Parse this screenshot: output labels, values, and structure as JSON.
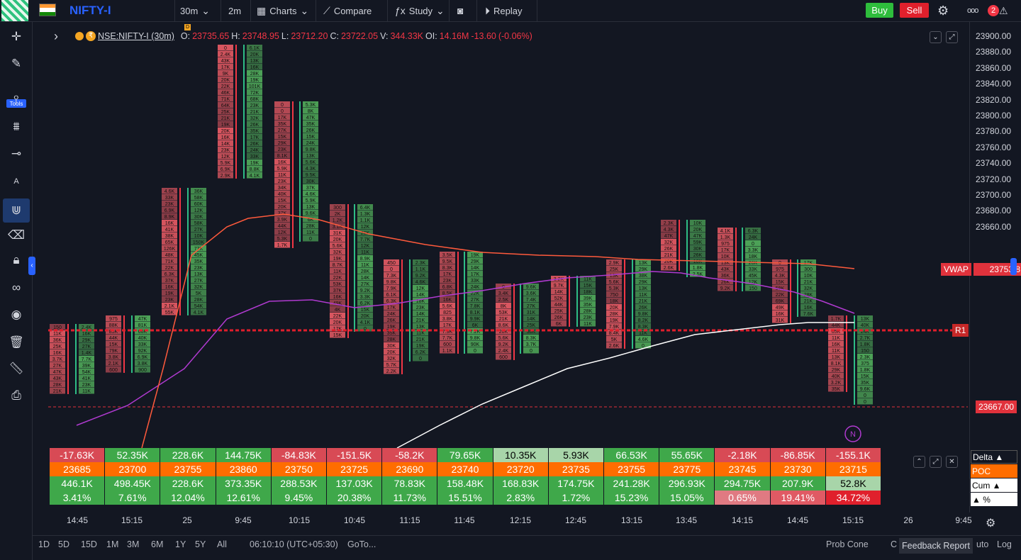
{
  "header": {
    "symbol": "NIFTY-I",
    "interval": "30m",
    "interval2": "2m",
    "charts_label": "Charts",
    "compare_label": "Compare",
    "study_label": "Study",
    "replay_label": "Replay",
    "buy_label": "Buy",
    "sell_label": "Sell",
    "notification_count": "2",
    "more_label": "ooo"
  },
  "left_toolbar": {
    "tools_label": "Tools"
  },
  "legend": {
    "symbol": "NSE:NIFTY-I (30m)",
    "open_label": "O:",
    "open": "23735.65",
    "high_label": "H:",
    "high": "23748.95",
    "low_label": "L:",
    "low": "23712.20",
    "close_label": "C:",
    "close": "23722.05",
    "volume_label": "V:",
    "volume": "344.33K",
    "oi_label": "OI:",
    "oi": "14.16M",
    "change": "-13.60",
    "change_pct": "(-0.06%)",
    "badge": "D"
  },
  "y_axis": {
    "ticks": [
      "23900.00",
      "23880.00",
      "23860.00",
      "23840.00",
      "23820.00",
      "23800.00",
      "23780.00",
      "23760.00",
      "23740.00",
      "23720.00",
      "23700.00",
      "23680.00",
      "23660.00"
    ],
    "vwap_label": "VWAP",
    "vwap_value": "23753.8",
    "r1_label": "R1",
    "last_price": "23667.00",
    "colors": {
      "vwap": "#ff5252",
      "r1": "#d32f2f",
      "last": "#f23645"
    }
  },
  "x_axis": {
    "ticks": [
      "14:45",
      "15:15",
      "25",
      "9:45",
      "10:15",
      "10:45",
      "11:15",
      "11:45",
      "12:15",
      "12:45",
      "13:15",
      "13:45",
      "14:15",
      "14:45",
      "15:15",
      "26",
      "9:45"
    ]
  },
  "footprint": {
    "candles": [
      {
        "dir": "down",
        "rows": [
          "150",
          "11K",
          "36K",
          "25K",
          "16K",
          "3.7K",
          "27K",
          "47K",
          "43K",
          "28K",
          "21K"
        ]
      },
      {
        "dir": "up",
        "rows": [
          "2.4K",
          "16K",
          "29K",
          "27K",
          "1.4K",
          "7.7K",
          "39K",
          "54K",
          "41K",
          "23K",
          "11K"
        ]
      },
      {
        "dir": "down",
        "rows": [
          "975",
          "88K",
          "85K",
          "44K",
          "15K",
          "79K",
          "3.8K",
          "2.1K",
          "600"
        ]
      },
      {
        "dir": "up",
        "rows": [
          "47K",
          "81K",
          "66K",
          "40K",
          "33K",
          "92K",
          "6.9K",
          "3.8K",
          "900"
        ]
      },
      {
        "dir": "down",
        "rows": [
          "4.6K",
          "33K",
          "23K",
          "6.9K",
          "8.9K",
          "16K",
          "41K",
          "38K",
          "65K",
          "126K",
          "48K",
          "71K",
          "22K",
          "6.3K",
          "37K",
          "16K",
          "19K",
          "23K",
          "2.1K",
          "55K"
        ]
      },
      {
        "dir": "up",
        "rows": [
          "36K",
          "58K",
          "60K",
          "12K",
          "30K",
          "58K",
          "27K",
          "10K",
          "150K",
          "77K",
          "45K",
          "35K",
          "23K",
          "13K",
          "27K",
          "32K",
          "5K",
          "28K",
          "54K",
          "4.1K"
        ]
      },
      {
        "dir": "down",
        "rows": [
          "0",
          "2.4K",
          "43K",
          "17K",
          "9K",
          "20K",
          "22K",
          "46K",
          "71K",
          "64K",
          "25K",
          "21K",
          "19K",
          "20K",
          "16K",
          "14K",
          "23K",
          "12K",
          "5.9K",
          "6.9K",
          "2.9K"
        ]
      },
      {
        "dir": "up",
        "rows": [
          "6.1K",
          "20K",
          "13K",
          "16K",
          "28K",
          "19K",
          "101K",
          "72K",
          "68K",
          "23K",
          "21K",
          "32K",
          "26K",
          "35K",
          "17K",
          "26K",
          "24K",
          "33K",
          "19K",
          "8.8K",
          "4.1K"
        ]
      },
      {
        "dir": "down",
        "rows": [
          "0",
          "0",
          "17K",
          "35K",
          "27K",
          "15K",
          "29K",
          "23K",
          "8.1K",
          "16K",
          "5.9K",
          "11K",
          "23K",
          "34K",
          "40K",
          "15K",
          "20K",
          "37K",
          "3.9K",
          "44K",
          "12K",
          "5.3K",
          "1.7K"
        ]
      },
      {
        "dir": "up",
        "rows": [
          "5.3K",
          "8K",
          "47K",
          "35K",
          "26K",
          "15K",
          "24K",
          "9.8K",
          "13K",
          "5.6K",
          "4.3K",
          "9.5K",
          "30K",
          "37K",
          "4.6K",
          "5.9K",
          "13K",
          "9.6K",
          "6K",
          "28K",
          "11K",
          "0"
        ]
      },
      {
        "dir": "down",
        "rows": [
          "300",
          "2K",
          "1.2K",
          "3.1K",
          "31K",
          "20K",
          "5.6K",
          "32K",
          "19K",
          "8.7K",
          "11K",
          "22K",
          "53K",
          "37K",
          "16K",
          "49K",
          "4K",
          "22K",
          "20K",
          "17K",
          "15K"
        ]
      },
      {
        "dir": "up",
        "rows": [
          "6.4K",
          "1.3K",
          "1.1K",
          "12K",
          "26K",
          "7.7K",
          "12K",
          "11K",
          "8.9K",
          "11K",
          "28K",
          "14K",
          "27K",
          "9.2K",
          "3.3K",
          "6.2K",
          "15K",
          "20K",
          "4.1K",
          "0"
        ]
      },
      {
        "dir": "down",
        "rows": [
          "450",
          "0",
          "7.3K",
          "9.8K",
          "7.9K",
          "6.1K",
          "6.3K",
          "17K",
          "24K",
          "26K",
          "19K",
          "35K",
          "28K",
          "30K",
          "20K",
          "32K",
          "5.7K",
          "2.2K"
        ]
      },
      {
        "dir": "up",
        "rows": [
          "2.3K",
          "1.1K",
          "9.2K",
          "4.6K",
          "12K",
          "14K",
          "18K",
          "23K",
          "14K",
          "21K",
          "13K",
          "11K",
          "21K",
          "19K",
          "6.2K",
          "0"
        ]
      },
      {
        "dir": "down",
        "rows": [
          "3.5K",
          "9.5K",
          "8.3K",
          "17K",
          "23K",
          "6.8K",
          "8.5K",
          "16K",
          "5.6K",
          "825",
          "3.8K",
          "17K",
          "7.9K",
          "7.7K",
          "600",
          "1.1K"
        ]
      },
      {
        "dir": "up",
        "rows": [
          "19K",
          "29K",
          "14K",
          "17K",
          "33K",
          "24K",
          "22K",
          "27K",
          "7.8K",
          "8.1K",
          "9.9K",
          "6K",
          "7.2K",
          "9.8K",
          "90K",
          "0"
        ]
      },
      {
        "dir": "down",
        "rows": [
          "0",
          "3.4K",
          "2.5K",
          "8K",
          "53K",
          "21K",
          "8.6K",
          "20K",
          "5.6K",
          "9.2K",
          "2.4K",
          "600"
        ]
      },
      {
        "dir": "up",
        "rows": [
          "9.6K",
          "3.6K",
          "7.4K",
          "27K",
          "31K",
          "14K",
          "25K",
          "30K",
          "8.3K",
          "3.7K",
          "0"
        ]
      },
      {
        "dir": "down",
        "rows": [
          "3.2K",
          "9.7K",
          "14K",
          "52K",
          "44K",
          "25K",
          "26K",
          "6K"
        ]
      },
      {
        "dir": "up",
        "rows": [
          "11K",
          "15K",
          "18K",
          "39K",
          "35K",
          "28K",
          "23K",
          "11K"
        ]
      },
      {
        "dir": "down",
        "rows": [
          "2.9K",
          "25K",
          "13K",
          "5.6K",
          "5.3K",
          "750",
          "18K",
          "20K",
          "28K",
          "19K",
          "7.9K",
          "8.4K",
          "5K",
          "2.6K"
        ]
      },
      {
        "dir": "up",
        "rows": [
          "13K",
          "29K",
          "38K",
          "29K",
          "13K",
          "11K",
          "21K",
          "26K",
          "9.8K",
          "8.2K",
          "8.3K",
          "11K",
          "4.6K",
          "0"
        ]
      },
      {
        "dir": "down",
        "rows": [
          "2.3K",
          "4.3K",
          "47K",
          "32K",
          "26K",
          "21K",
          "20K",
          "2.6K"
        ]
      },
      {
        "dir": "up",
        "rows": [
          "10K",
          "20K",
          "47K",
          "59K",
          "30K",
          "26K",
          "16K",
          "1.8K",
          "2.5K"
        ]
      },
      {
        "dir": "down",
        "rows": [
          "4.1K",
          "1.3K",
          "975",
          "17K",
          "10K",
          "13K",
          "43K",
          "36K",
          "26K",
          "9.2K"
        ]
      },
      {
        "dir": "up",
        "rows": [
          "6.3K",
          "24K",
          "0",
          "3.3K",
          "18K",
          "26K",
          "33K",
          "45K",
          "12K",
          "150"
        ]
      },
      {
        "dir": "down",
        "rows": [
          "0",
          "975",
          "4.3K",
          "15K",
          "59K",
          "22K",
          "69K",
          "49K",
          "16K",
          "31K"
        ]
      },
      {
        "dir": "up",
        "rows": [
          "17K",
          "300",
          "10K",
          "21K",
          "32K",
          "28K",
          "21K",
          "16K",
          "7.6K"
        ]
      },
      {
        "dir": "down",
        "rows": [
          "1.7K",
          "44K",
          "65K",
          "11K",
          "16K",
          "11K",
          "13K",
          "8.1K",
          "29K",
          "40K",
          "3.2K",
          "35K"
        ]
      },
      {
        "dir": "up",
        "rows": [
          "13K",
          "40K",
          "24K",
          "2.7K",
          "1.8K",
          "150",
          "2.3K",
          "375",
          "1.8K",
          "15K",
          "35K",
          "9.6K",
          "0",
          "0"
        ]
      }
    ]
  },
  "summary_table": {
    "delta": [
      "-17.63K",
      "52.35K",
      "228.6K",
      "144.75K",
      "-84.83K",
      "-151.5K",
      "-58.2K",
      "79.65K",
      "10.35K",
      "5.93K",
      "66.53K",
      "55.65K",
      "-2.18K",
      "-86.85K",
      "-155.1K"
    ],
    "poc": [
      "23685",
      "23700",
      "23755",
      "23860",
      "23750",
      "23725",
      "23690",
      "23740",
      "23720",
      "23735",
      "23755",
      "23775",
      "23745",
      "23730",
      "23715"
    ],
    "cum": [
      "446.1K",
      "498.45K",
      "228.6K",
      "373.35K",
      "288.53K",
      "137.03K",
      "78.83K",
      "158.48K",
      "168.83K",
      "174.75K",
      "241.28K",
      "296.93K",
      "294.75K",
      "207.9K",
      "52.8K"
    ],
    "pct": [
      "3.41%",
      "7.61%",
      "12.04%",
      "12.61%",
      "9.45%",
      "20.38%",
      "11.73%",
      "15.51%",
      "2.83%",
      "1.72%",
      "15.23%",
      "15.05%",
      "0.65%",
      "19.41%",
      "34.72%"
    ],
    "row_labels": {
      "delta": "Delta ▲",
      "poc": "POC",
      "cum": "Cum ▲",
      "pct": "▲ %"
    }
  },
  "bottom_bar": {
    "ranges": [
      "1D",
      "5D",
      "15D",
      "1M",
      "3M",
      "6M",
      "1Y",
      "5Y",
      "All"
    ],
    "time": "06:10:10 (UTC+05:30)",
    "goto_label": "GoTo...",
    "prob_cone_label": "Prob Cone",
    "c_label": "C",
    "auto_label": "uto",
    "log_label": "Log",
    "feedback_label": "Feedback Report"
  },
  "marker_label": "N"
}
